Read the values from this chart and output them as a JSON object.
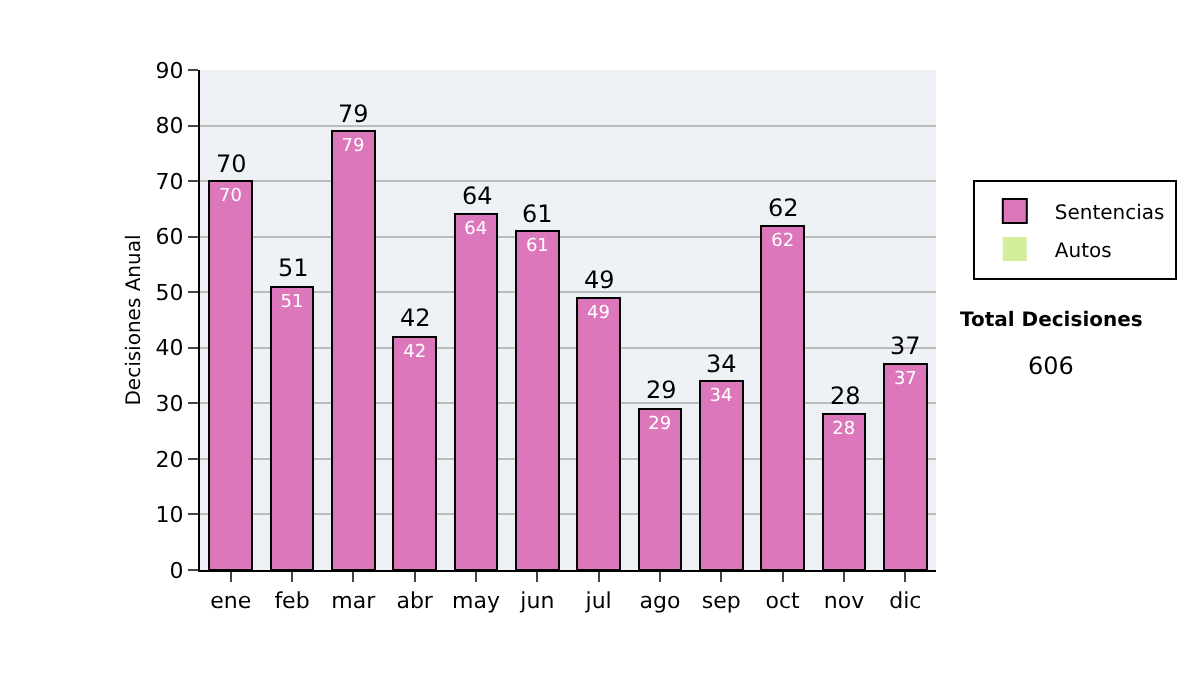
{
  "chart_data": {
    "type": "bar",
    "stacked": true,
    "ylabel": "Decisiones Anual",
    "categories": [
      "ene",
      "feb",
      "mar",
      "abr",
      "may",
      "jun",
      "jul",
      "ago",
      "sep",
      "oct",
      "nov",
      "dic"
    ],
    "series": [
      {
        "name": "Sentencias",
        "color": "#dd77bb",
        "values": [
          70,
          51,
          79,
          42,
          64,
          61,
          49,
          29,
          34,
          62,
          28,
          37
        ],
        "value_labels": [
          "70",
          "51",
          "79",
          "42",
          "64",
          "61",
          "49",
          "29",
          "34",
          "62",
          "28",
          "37"
        ]
      },
      {
        "name": "Autos",
        "color": "#d4ee9c",
        "values": [
          0,
          0,
          0,
          0,
          0,
          0,
          0,
          0,
          0,
          0,
          0,
          0
        ]
      }
    ],
    "totals": [
      "70",
      "51",
      "79",
      "42",
      "64",
      "61",
      "49",
      "29",
      "34",
      "62",
      "28",
      "37"
    ],
    "ylim": [
      0,
      90
    ],
    "yticks": [
      0,
      10,
      20,
      30,
      40,
      50,
      60,
      70,
      80,
      90
    ],
    "grid": "y",
    "legend": "right",
    "annotations": [
      "Total Decisiones",
      "606"
    ]
  }
}
